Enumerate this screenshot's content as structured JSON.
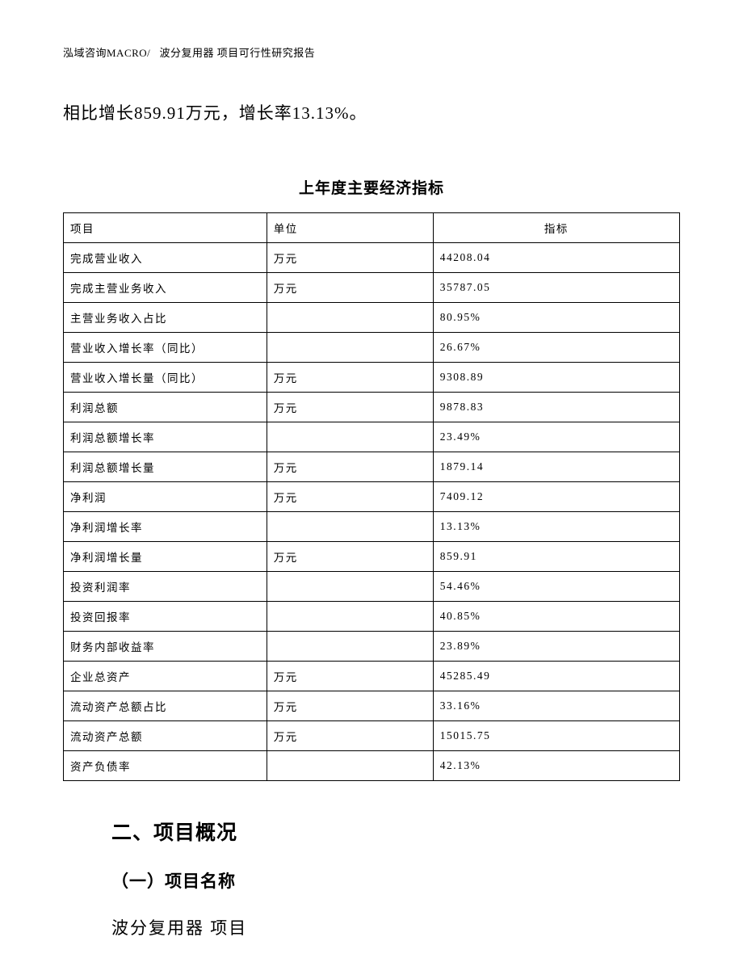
{
  "header": {
    "company": "泓域咨询MACRO/",
    "doc_title": "波分复用器 项目可行性研究报告"
  },
  "body_text": "相比增长859.91万元，增长率13.13%。",
  "table": {
    "title": "上年度主要经济指标",
    "columns": [
      "项目",
      "单位",
      "指标"
    ],
    "col_widths": [
      "33%",
      "27%",
      "40%"
    ],
    "border_color": "#000000",
    "background_color": "#ffffff",
    "header_fontsize": 13.5,
    "cell_fontsize": 13.5,
    "rows": [
      {
        "item": "完成营业收入",
        "unit": "万元",
        "value": "44208.04"
      },
      {
        "item": "完成主营业务收入",
        "unit": "万元",
        "value": "35787.05"
      },
      {
        "item": "主营业务收入占比",
        "unit": "",
        "value": "80.95%"
      },
      {
        "item": "营业收入增长率（同比）",
        "unit": "",
        "value": "26.67%"
      },
      {
        "item": "营业收入增长量（同比）",
        "unit": "万元",
        "value": "9308.89"
      },
      {
        "item": "利润总额",
        "unit": "万元",
        "value": "9878.83"
      },
      {
        "item": "利润总额增长率",
        "unit": "",
        "value": "23.49%"
      },
      {
        "item": "利润总额增长量",
        "unit": "万元",
        "value": "1879.14"
      },
      {
        "item": "净利润",
        "unit": "万元",
        "value": "7409.12"
      },
      {
        "item": "净利润增长率",
        "unit": "",
        "value": "13.13%"
      },
      {
        "item": "净利润增长量",
        "unit": "万元",
        "value": "859.91"
      },
      {
        "item": "投资利润率",
        "unit": "",
        "value": "54.46%"
      },
      {
        "item": "投资回报率",
        "unit": "",
        "value": "40.85%"
      },
      {
        "item": "财务内部收益率",
        "unit": "",
        "value": "23.89%"
      },
      {
        "item": "企业总资产",
        "unit": "万元",
        "value": "45285.49"
      },
      {
        "item": "流动资产总额占比",
        "unit": "万元",
        "value": "33.16%"
      },
      {
        "item": "流动资产总额",
        "unit": "万元",
        "value": "15015.75"
      },
      {
        "item": "资产负债率",
        "unit": "",
        "value": "42.13%"
      }
    ]
  },
  "sections": {
    "heading": "二、项目概况",
    "subheading": "（一）项目名称",
    "item": "波分复用器 项目"
  },
  "styling": {
    "page_bg": "#ffffff",
    "text_color": "#000000",
    "body_fontsize": 21,
    "header_fontsize": 13,
    "title_fontsize": 19,
    "section_fontsize": 25,
    "subsection_fontsize": 21
  }
}
